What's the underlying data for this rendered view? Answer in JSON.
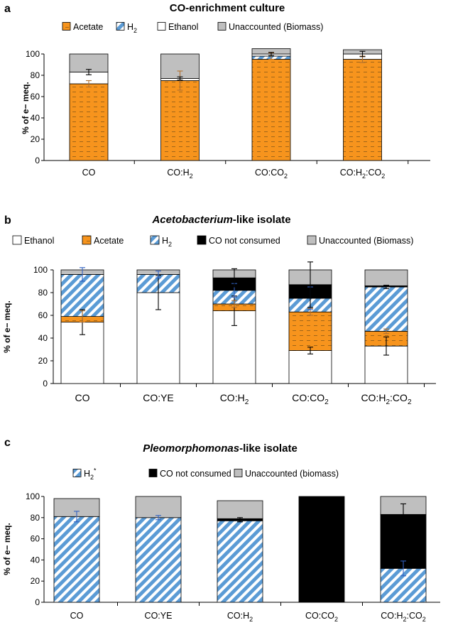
{
  "colors": {
    "acetate": "#f7941d",
    "h2_stripe": "#5b9bd5",
    "ethanol": "#ffffff",
    "unaccounted": "#bfbfbf",
    "co_not_consumed": "#000000",
    "error_dark": "#000000",
    "error_orange": "#b07030",
    "error_blue": "#3060c0"
  },
  "chart_data": [
    {
      "panel": "a",
      "type": "bar",
      "stacked": true,
      "title": "CO-enrichment culture",
      "title_parts": [
        {
          "text": "CO-enrichment culture",
          "italic": false
        }
      ],
      "ylabel": "% of e− meq.",
      "ylim": [
        0,
        100
      ],
      "yticks": [
        "0",
        "20",
        "40",
        "60",
        "80",
        "100"
      ],
      "categories": [
        [
          {
            "t": "CO"
          }
        ],
        [
          {
            "t": "CO:H"
          },
          {
            "t": "2",
            "sub": true
          }
        ],
        [
          {
            "t": "CO:CO"
          },
          {
            "t": "2",
            "sub": true
          }
        ],
        [
          {
            "t": "CO:H"
          },
          {
            "t": "2",
            "sub": true
          },
          {
            "t": ":CO"
          },
          {
            "t": "2",
            "sub": true
          }
        ]
      ],
      "legend": [
        {
          "key": "acetate",
          "label": [
            {
              "t": "Acetate"
            }
          ]
        },
        {
          "key": "h2",
          "label": [
            {
              "t": "H"
            },
            {
              "t": "2",
              "sub": true
            }
          ]
        },
        {
          "key": "ethanol",
          "label": [
            {
              "t": "Ethanol"
            }
          ]
        },
        {
          "key": "unaccounted",
          "label": [
            {
              "t": "Unaccounted (Biomass)"
            }
          ]
        }
      ],
      "series": [
        {
          "name": "Acetate",
          "key": "acetate",
          "values": [
            72,
            75,
            95,
            95
          ]
        },
        {
          "name": "H2",
          "key": "h2",
          "values": [
            0,
            0,
            3,
            0
          ]
        },
        {
          "name": "Ethanol",
          "key": "ethanol",
          "values": [
            11,
            2,
            2,
            5
          ]
        },
        {
          "name": "Unaccounted (Biomass)",
          "key": "unaccounted",
          "values": [
            17,
            23,
            5,
            4
          ]
        }
      ],
      "errors": [
        {
          "cat": 0,
          "value": 72,
          "err": 3,
          "color": "error_orange"
        },
        {
          "cat": 0,
          "value": 83,
          "err": 2.5,
          "color": "error_dark"
        },
        {
          "cat": 1,
          "value": 75,
          "err": 9,
          "color": "error_orange"
        },
        {
          "cat": 1,
          "value": 77,
          "err": 1.5,
          "color": "error_dark"
        },
        {
          "cat": 2,
          "value": 98,
          "err": 3,
          "color": "error_orange"
        },
        {
          "cat": 2,
          "value": 100,
          "err": 1.5,
          "color": "error_dark"
        },
        {
          "cat": 3,
          "value": 95,
          "err": 3,
          "color": "error_orange"
        },
        {
          "cat": 3,
          "value": 100,
          "err": 2.5,
          "color": "error_dark"
        }
      ]
    },
    {
      "panel": "b",
      "type": "bar",
      "stacked": true,
      "title": "Acetobacterium-like isolate",
      "title_parts": [
        {
          "text": "Acetobacterium",
          "italic": true
        },
        {
          "text": "-like isolate",
          "italic": false
        }
      ],
      "ylabel": "% of e− meq.",
      "ylim": [
        0,
        100
      ],
      "yticks": [
        "0",
        "20",
        "40",
        "60",
        "80",
        "100"
      ],
      "categories": [
        [
          {
            "t": "CO"
          }
        ],
        [
          {
            "t": "CO:YE"
          }
        ],
        [
          {
            "t": "CO:H"
          },
          {
            "t": "2",
            "sub": true
          }
        ],
        [
          {
            "t": "CO:CO"
          },
          {
            "t": "2",
            "sub": true
          }
        ],
        [
          {
            "t": "CO:H"
          },
          {
            "t": "2",
            "sub": true
          },
          {
            "t": ":CO"
          },
          {
            "t": "2",
            "sub": true
          }
        ]
      ],
      "legend": [
        {
          "key": "ethanol",
          "label": [
            {
              "t": "Ethanol"
            }
          ]
        },
        {
          "key": "acetate",
          "label": [
            {
              "t": "Acetate"
            }
          ]
        },
        {
          "key": "h2",
          "label": [
            {
              "t": "H"
            },
            {
              "t": "2",
              "sub": true
            }
          ]
        },
        {
          "key": "co_not_consumed",
          "label": [
            {
              "t": "CO not consumed"
            }
          ]
        },
        {
          "key": "unaccounted",
          "label": [
            {
              "t": "Unaccounted (Biomass)"
            }
          ]
        }
      ],
      "series": [
        {
          "name": "Ethanol",
          "key": "ethanol",
          "values": [
            54,
            80,
            64,
            29,
            33
          ]
        },
        {
          "name": "Acetate",
          "key": "acetate",
          "values": [
            5,
            0,
            6,
            34,
            13
          ]
        },
        {
          "name": "H2",
          "key": "h2",
          "values": [
            37,
            16,
            12,
            12,
            39
          ]
        },
        {
          "name": "CO not consumed",
          "key": "co_not_consumed",
          "values": [
            0,
            0,
            11,
            12,
            1
          ]
        },
        {
          "name": "Unaccounted (Biomass)",
          "key": "unaccounted",
          "values": [
            4,
            4,
            7,
            13,
            14
          ]
        }
      ],
      "errors": [
        {
          "cat": 0,
          "value": 54,
          "err": 11,
          "color": "error_dark"
        },
        {
          "cat": 0,
          "value": 59,
          "err": 5,
          "color": "error_orange"
        },
        {
          "cat": 0,
          "value": 96,
          "err": 6,
          "color": "error_blue"
        },
        {
          "cat": 1,
          "value": 80,
          "err": 15,
          "color": "error_dark"
        },
        {
          "cat": 1,
          "value": 96,
          "err": 3,
          "color": "error_blue"
        },
        {
          "cat": 2,
          "value": 64,
          "err": 13,
          "color": "error_dark"
        },
        {
          "cat": 2,
          "value": 70,
          "err": 3,
          "color": "error_orange"
        },
        {
          "cat": 2,
          "value": 82,
          "err": 6,
          "color": "error_blue"
        },
        {
          "cat": 2,
          "value": 93,
          "err": 8,
          "color": "error_dark"
        },
        {
          "cat": 3,
          "value": 29,
          "err": 3,
          "color": "error_dark"
        },
        {
          "cat": 3,
          "value": 63,
          "err": 3,
          "color": "error_orange"
        },
        {
          "cat": 3,
          "value": 75,
          "err": 10,
          "color": "error_blue"
        },
        {
          "cat": 3,
          "value": 87,
          "err": 20,
          "color": "error_dark"
        },
        {
          "cat": 4,
          "value": 33,
          "err": 8,
          "color": "error_dark"
        },
        {
          "cat": 4,
          "value": 46,
          "err": 2,
          "color": "error_orange"
        },
        {
          "cat": 4,
          "value": 85,
          "err": 1.5,
          "color": "error_dark"
        }
      ]
    },
    {
      "panel": "c",
      "type": "bar",
      "stacked": true,
      "title": "Pleomorphomonas-like isolate",
      "title_parts": [
        {
          "text": "Pleomorphomonas",
          "italic": true
        },
        {
          "text": "-like isolate",
          "italic": false
        }
      ],
      "ylabel": "% of e− meq.",
      "ylim": [
        0,
        100
      ],
      "yticks": [
        "0",
        "20",
        "40",
        "60",
        "80",
        "100"
      ],
      "categories": [
        [
          {
            "t": "CO"
          }
        ],
        [
          {
            "t": "CO:YE"
          }
        ],
        [
          {
            "t": "CO:H"
          },
          {
            "t": "2",
            "sub": true
          }
        ],
        [
          {
            "t": "CO:CO"
          },
          {
            "t": "2",
            "sub": true
          }
        ],
        [
          {
            "t": "CO:H"
          },
          {
            "t": "2",
            "sub": true
          },
          {
            "t": ":CO"
          },
          {
            "t": "2",
            "sub": true
          }
        ]
      ],
      "legend": [
        {
          "key": "h2",
          "label": [
            {
              "t": "H"
            },
            {
              "t": "2",
              "sub": true
            },
            {
              "t": "*",
              "sup": true
            }
          ]
        },
        {
          "key": "co_not_consumed",
          "label": [
            {
              "t": "CO not consumed"
            }
          ]
        },
        {
          "key": "unaccounted",
          "label": [
            {
              "t": "Unaccounted (biomass)"
            }
          ]
        }
      ],
      "series": [
        {
          "name": "H2*",
          "key": "h2",
          "values": [
            81,
            80,
            77,
            0,
            32
          ]
        },
        {
          "name": "CO not consumed",
          "key": "co_not_consumed",
          "values": [
            0,
            0,
            2,
            100,
            51
          ]
        },
        {
          "name": "Unaccounted (biomass)",
          "key": "unaccounted",
          "values": [
            17,
            20,
            17,
            0,
            17
          ]
        }
      ],
      "errors": [
        {
          "cat": 0,
          "value": 81,
          "err": 5,
          "color": "error_blue"
        },
        {
          "cat": 1,
          "value": 80,
          "err": 2,
          "color": "error_blue"
        },
        {
          "cat": 2,
          "value": 78,
          "err": 2,
          "color": "error_dark"
        },
        {
          "cat": 4,
          "value": 32,
          "err": 7,
          "color": "error_blue"
        },
        {
          "cat": 4,
          "value": 83,
          "err": 10,
          "color": "error_dark"
        }
      ]
    }
  ]
}
